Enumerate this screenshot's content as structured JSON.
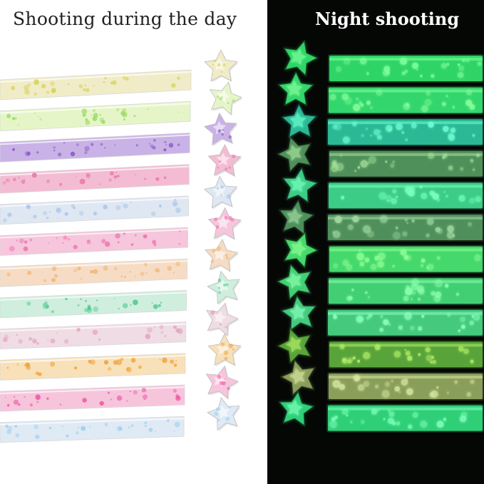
{
  "captions": {
    "day": "Shooting during the day",
    "night": "Night shooting"
  },
  "day_colors": [
    "#f0ecc8",
    "#e6f5c8",
    "#c9b2e6",
    "#f3bcd3",
    "#dfe7f2",
    "#f5c6dc",
    "#f6dcc4",
    "#cfeedd",
    "#efdce4",
    "#f8e0b8",
    "#f6c5dc",
    "#dfeaf5"
  ],
  "day_dots": [
    "#d9d35a",
    "#9fdc6a",
    "#8a5cc6",
    "#e77cab",
    "#a9c7ea",
    "#ee73b0",
    "#f0b577",
    "#53c992",
    "#e6a6bf",
    "#eda43f",
    "#ee5fa9",
    "#9dd0ee"
  ],
  "night_colors": [
    "#2fd466",
    "#33d66d",
    "#2bb894",
    "#4f8f5a",
    "#3ccc86",
    "#4e8f5c",
    "#45d86c",
    "#42cf73",
    "#45c97c",
    "#58a43a",
    "#8a9e5c",
    "#2fcf78"
  ],
  "night_glow": [
    "#7dff9e",
    "#86ff9b",
    "#6dffd2",
    "#a7e29a",
    "#79ffbf",
    "#a3d9a1",
    "#8fff95",
    "#8dffad",
    "#8bffbf",
    "#b5ef6a",
    "#d6e7a0",
    "#80ffbd"
  ]
}
